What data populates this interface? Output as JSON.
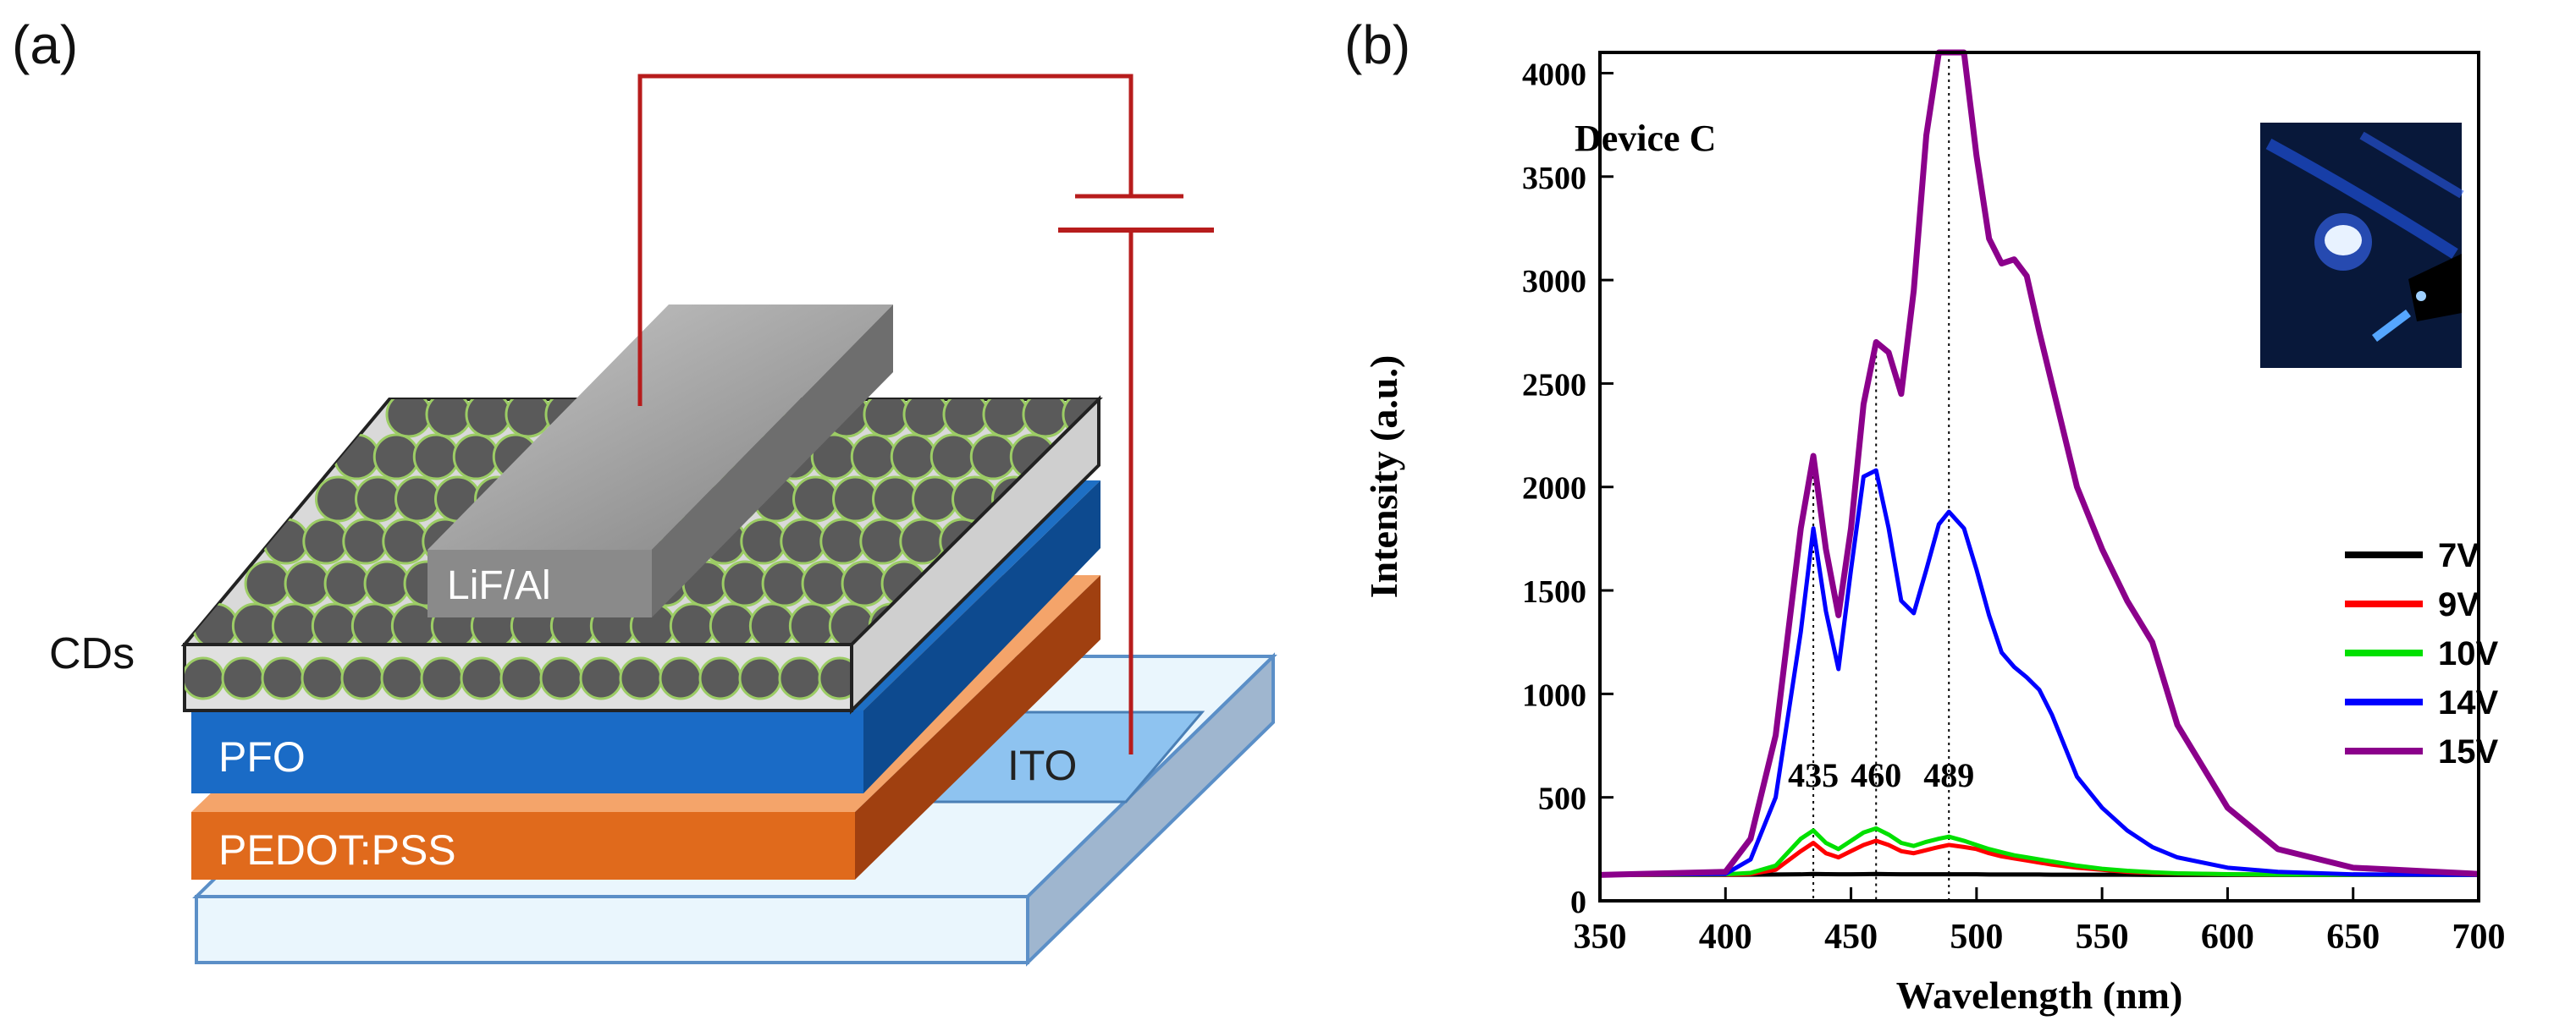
{
  "panels": {
    "a_label": "(a)",
    "b_label": "(b)"
  },
  "device_schematic": {
    "layers": {
      "top_electrode": "LiF/Al",
      "emissive": "CDs",
      "hole_transport": "PFO",
      "hole_injection": "PEDOT:PSS",
      "anode": "ITO"
    },
    "colors": {
      "wire": "#b71c1c",
      "pfo": "#1565c0",
      "pedot": "#e65100",
      "ito": "#90caf9",
      "cd": "#5a5a5a",
      "cd_outline": "#9ccc65",
      "electrode": "#9e9e9e"
    }
  },
  "chart_data": {
    "type": "line",
    "title": "Device C",
    "xlabel": "Wavelength (nm)",
    "ylabel": "Intensity (a.u.)",
    "xlim": [
      350,
      700
    ],
    "ylim": [
      0,
      4100
    ],
    "xticks": [
      350,
      400,
      450,
      500,
      550,
      600,
      650,
      700
    ],
    "yticks": [
      0,
      500,
      1000,
      1500,
      2000,
      2500,
      3000,
      3500,
      4000
    ],
    "x": [
      350,
      400,
      410,
      420,
      430,
      435,
      440,
      445,
      450,
      455,
      460,
      465,
      470,
      475,
      480,
      485,
      489,
      495,
      500,
      505,
      510,
      515,
      520,
      525,
      530,
      540,
      550,
      560,
      570,
      580,
      600,
      620,
      650,
      700
    ],
    "series": [
      {
        "name": "7V",
        "color": "#000000",
        "values": [
          125,
          125,
          126,
          127,
          128,
          130,
          129,
          128,
          128,
          129,
          130,
          129,
          128,
          128,
          128,
          128,
          128,
          128,
          128,
          127,
          127,
          127,
          127,
          127,
          126,
          126,
          126,
          126,
          125,
          125,
          125,
          125,
          125,
          125
        ]
      },
      {
        "name": "9V",
        "color": "#ff0000",
        "values": [
          125,
          126,
          130,
          150,
          240,
          280,
          230,
          210,
          240,
          270,
          290,
          270,
          240,
          230,
          245,
          260,
          270,
          260,
          250,
          230,
          215,
          205,
          195,
          185,
          175,
          160,
          150,
          140,
          135,
          132,
          128,
          127,
          126,
          125
        ]
      },
      {
        "name": "10V",
        "color": "#00e000",
        "values": [
          125,
          128,
          135,
          170,
          300,
          340,
          280,
          250,
          290,
          330,
          350,
          320,
          280,
          265,
          285,
          300,
          310,
          290,
          270,
          250,
          235,
          220,
          210,
          200,
          190,
          170,
          155,
          145,
          138,
          133,
          129,
          127,
          126,
          125
        ]
      },
      {
        "name": "14V",
        "color": "#0000ff",
        "values": [
          125,
          130,
          200,
          500,
          1300,
          1800,
          1400,
          1120,
          1600,
          2050,
          2080,
          1800,
          1450,
          1390,
          1600,
          1820,
          1880,
          1800,
          1600,
          1380,
          1200,
          1130,
          1080,
          1020,
          900,
          600,
          450,
          340,
          260,
          210,
          160,
          140,
          128,
          125
        ]
      },
      {
        "name": "15V",
        "color": "#8b008b",
        "values": [
          125,
          140,
          300,
          800,
          1800,
          2150,
          1700,
          1380,
          1800,
          2400,
          2700,
          2650,
          2450,
          2950,
          3700,
          4100,
          4100,
          4100,
          3600,
          3200,
          3080,
          3100,
          3020,
          2750,
          2500,
          2000,
          1700,
          1450,
          1250,
          850,
          450,
          250,
          160,
          130
        ]
      }
    ],
    "annotations": [
      {
        "text": "435",
        "x": 435
      },
      {
        "text": "460",
        "x": 460
      },
      {
        "text": "489",
        "x": 489
      }
    ],
    "legend_position": "right"
  }
}
